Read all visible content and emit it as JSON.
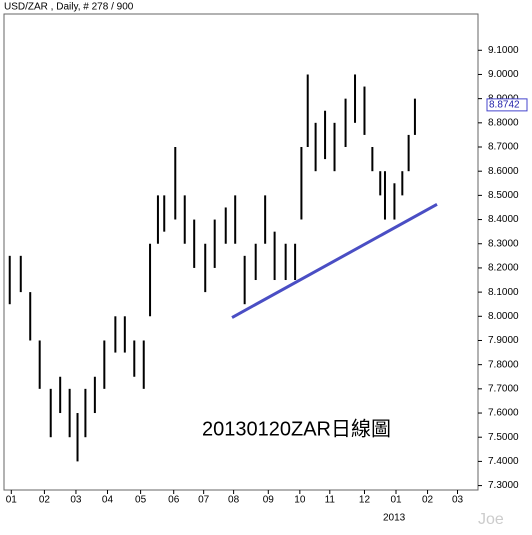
{
  "chart_data": {
    "type": "ohlc",
    "title": "USD/ZAR , Daily, # 278 / 900",
    "annotation": "20130120ZAR日線圖",
    "year_label": "2013",
    "watermark": "Joe",
    "color": "#000000",
    "x": [
      3,
      10,
      16,
      22,
      29,
      35,
      41,
      46,
      51,
      57,
      63,
      70,
      76,
      82,
      88,
      92,
      97,
      101,
      108,
      114,
      120,
      127,
      133,
      140,
      146,
      152,
      159,
      165,
      171,
      178,
      184,
      188,
      192,
      197,
      203,
      209,
      216,
      222,
      228,
      233,
      238,
      241,
      247,
      252,
      256,
      260
    ],
    "high": [
      8.25,
      8.25,
      8.1,
      7.9,
      7.7,
      7.75,
      7.7,
      7.6,
      7.7,
      7.75,
      7.9,
      8.0,
      8.0,
      7.9,
      7.9,
      8.3,
      8.5,
      8.5,
      8.7,
      8.5,
      8.4,
      8.3,
      8.4,
      8.45,
      8.5,
      8.25,
      8.3,
      8.5,
      8.35,
      8.3,
      8.3,
      8.7,
      9.0,
      8.8,
      8.85,
      8.8,
      8.9,
      9.0,
      8.95,
      8.7,
      8.6,
      8.6,
      8.55,
      8.6,
      8.75,
      8.9
    ],
    "low": [
      8.05,
      8.1,
      7.9,
      7.7,
      7.5,
      7.6,
      7.5,
      7.4,
      7.5,
      7.6,
      7.7,
      7.85,
      7.85,
      7.75,
      7.7,
      8.0,
      8.3,
      8.35,
      8.4,
      8.3,
      8.2,
      8.1,
      8.2,
      8.3,
      8.3,
      8.05,
      8.15,
      8.3,
      8.15,
      8.15,
      8.15,
      8.4,
      8.7,
      8.6,
      8.65,
      8.6,
      8.7,
      8.8,
      8.75,
      8.6,
      8.5,
      8.4,
      8.4,
      8.5,
      8.6,
      8.75
    ],
    "last_price": 8.8742,
    "trendline": {
      "x": [
        144,
        274
      ],
      "y": [
        7.995,
        8.463
      ],
      "color": "#4a4ec4"
    },
    "xlim": [
      0,
      300
    ],
    "ylim": [
      7.29,
      9.25
    ],
    "xticks": [
      {
        "value": 4,
        "label": "01"
      },
      {
        "value": 25,
        "label": "02"
      },
      {
        "value": 45,
        "label": "03"
      },
      {
        "value": 65,
        "label": "04"
      },
      {
        "value": 86,
        "label": "05"
      },
      {
        "value": 107,
        "label": "06"
      },
      {
        "value": 126,
        "label": "07"
      },
      {
        "value": 145,
        "label": "08"
      },
      {
        "value": 167,
        "label": "09"
      },
      {
        "value": 187,
        "label": "10"
      },
      {
        "value": 206,
        "label": "11"
      },
      {
        "value": 228,
        "label": "12"
      },
      {
        "value": 248,
        "label": "01"
      },
      {
        "value": 268,
        "label": "02"
      },
      {
        "value": 287,
        "label": "03"
      }
    ],
    "yticks": [
      {
        "value": 7.3,
        "label": "7.3000"
      },
      {
        "value": 7.4,
        "label": "7.4000"
      },
      {
        "value": 7.5,
        "label": "7.5000"
      },
      {
        "value": 7.6,
        "label": "7.6000"
      },
      {
        "value": 7.7,
        "label": "7.7000"
      },
      {
        "value": 7.8,
        "label": "7.8000"
      },
      {
        "value": 7.9,
        "label": "7.9000"
      },
      {
        "value": 8.0,
        "label": "8.0000"
      },
      {
        "value": 8.1,
        "label": "8.1000"
      },
      {
        "value": 8.2,
        "label": "8.2000"
      },
      {
        "value": 8.3,
        "label": "8.3000"
      },
      {
        "value": 8.4,
        "label": "8.4000"
      },
      {
        "value": 8.5,
        "label": "8.5000"
      },
      {
        "value": 8.6,
        "label": "8.6000"
      },
      {
        "value": 8.7,
        "label": "8.7000"
      },
      {
        "value": 8.8,
        "label": "8.8000"
      },
      {
        "value": 8.9,
        "label": "8.9000"
      },
      {
        "value": 9.0,
        "label": "9.0000"
      },
      {
        "value": 9.1,
        "label": "9.1000"
      }
    ]
  }
}
